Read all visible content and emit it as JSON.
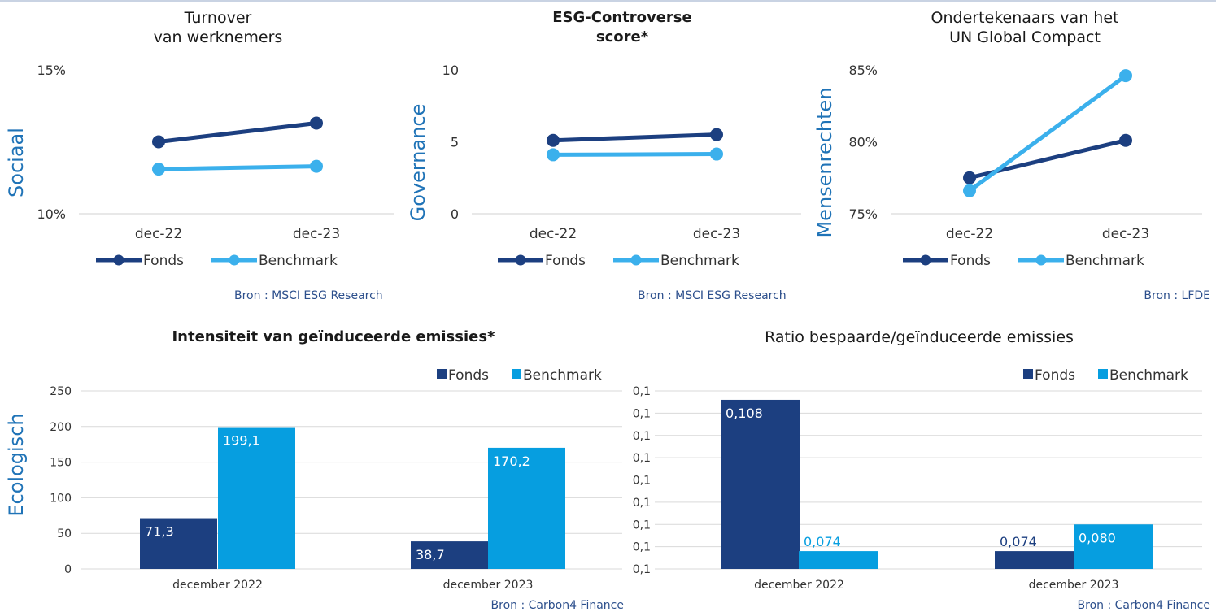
{
  "colors": {
    "fonds": "#1c3f80",
    "benchmark": "#3bb0ec",
    "benchmark_bar": "#069ee0",
    "source": "#2c4f8c",
    "axis_label": "#1f73b7"
  },
  "line_charts": [
    {
      "title_line1": "Turnover",
      "title_line2": "van werknemers",
      "title_bold": false,
      "side_label": "Sociaal",
      "source": "Bron : MSCI ESG Research"
    },
    {
      "title_line1": "ESG-Controverse",
      "title_line2": "score*",
      "title_bold": true,
      "side_label": "Governance",
      "source": "Bron : MSCI ESG Research"
    },
    {
      "title_line1": "Ondertekenaars van het",
      "title_line2": "UN Global Compact",
      "title_bold": false,
      "side_label": "Mensenrechten",
      "source": "Bron : LFDE"
    }
  ],
  "bar_charts": [
    {
      "title": "Intensiteit van geïnduceerde emissies*",
      "title_bold": true,
      "side_label": "Ecologisch",
      "source": "Bron : Carbon4 Finance"
    },
    {
      "title": "Ratio bespaarde/geïnduceerde emissies",
      "title_bold": false,
      "side_label": "",
      "source": "Bron : Carbon4 Finance"
    }
  ],
  "chart_data": [
    {
      "type": "line",
      "categories": [
        "dec-22",
        "dec-23"
      ],
      "ylim": [
        10,
        15
      ],
      "yticks": [
        10,
        15
      ],
      "ytick_labels": [
        "10%",
        "15%"
      ],
      "series": [
        {
          "name": "Fonds",
          "values": [
            12.5,
            13.15
          ]
        },
        {
          "name": "Benchmark",
          "values": [
            11.55,
            11.65
          ]
        }
      ],
      "legend": "bottom",
      "grid": false
    },
    {
      "type": "line",
      "categories": [
        "dec-22",
        "dec-23"
      ],
      "ylim": [
        0,
        10
      ],
      "yticks": [
        0,
        5,
        10
      ],
      "ytick_labels": [
        "0",
        "5",
        "10"
      ],
      "series": [
        {
          "name": "Fonds",
          "values": [
            5.1,
            5.5
          ]
        },
        {
          "name": "Benchmark",
          "values": [
            4.1,
            4.15
          ]
        }
      ],
      "legend": "bottom",
      "grid": false
    },
    {
      "type": "line",
      "categories": [
        "dec-22",
        "dec-23"
      ],
      "ylim": [
        75,
        85
      ],
      "yticks": [
        75,
        80,
        85
      ],
      "ytick_labels": [
        "75%",
        "80%",
        "85%"
      ],
      "series": [
        {
          "name": "Fonds",
          "values": [
            77.5,
            80.1
          ]
        },
        {
          "name": "Benchmark",
          "values": [
            76.6,
            84.6
          ]
        }
      ],
      "legend": "bottom",
      "grid": false
    },
    {
      "type": "bar",
      "categories": [
        "december 2022",
        "december 2023"
      ],
      "ylim": [
        0,
        250
      ],
      "yticks": [
        0,
        50,
        100,
        150,
        200,
        250
      ],
      "ytick_labels": [
        "0",
        "50",
        "100",
        "150",
        "200",
        "250"
      ],
      "series": [
        {
          "name": "Fonds",
          "values": [
            71.3,
            38.7
          ],
          "labels": [
            "71,3",
            "38,7"
          ]
        },
        {
          "name": "Benchmark",
          "values": [
            199.1,
            170.2
          ],
          "labels": [
            "199,1",
            "170,2"
          ]
        }
      ],
      "legend": "top-right",
      "grid": true
    },
    {
      "type": "bar",
      "categories": [
        "december 2022",
        "december 2023"
      ],
      "ylim": [
        0.07,
        0.11
      ],
      "yticks": [
        0.07,
        0.075,
        0.08,
        0.085,
        0.09,
        0.095,
        0.1,
        0.105,
        0.11
      ],
      "ytick_labels": [
        "0,1",
        "0,1",
        "0,1",
        "0,1",
        "0,1",
        "0,1",
        "0,1",
        "0,1",
        "0,1"
      ],
      "series": [
        {
          "name": "Fonds",
          "values": [
            0.108,
            0.074
          ],
          "labels": [
            "0,108",
            "0,074"
          ]
        },
        {
          "name": "Benchmark",
          "values": [
            0.074,
            0.08
          ],
          "labels": [
            "0,074",
            "0,080"
          ]
        }
      ],
      "legend": "top-right",
      "grid": true
    }
  ]
}
